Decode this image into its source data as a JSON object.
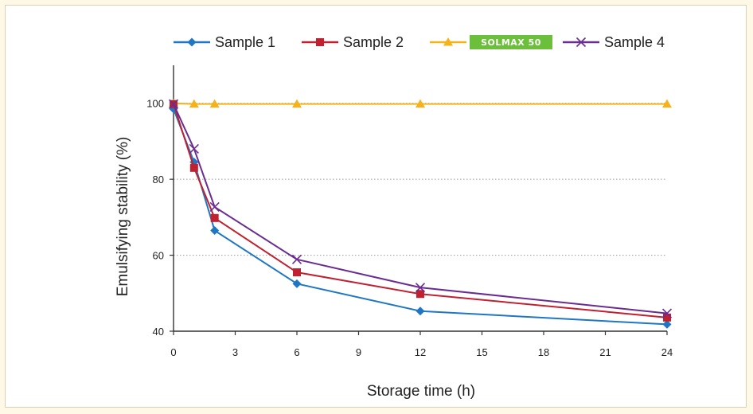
{
  "chart_data": {
    "type": "line",
    "xlabel": "Storage time (h)",
    "ylabel": "Emulsifying stability (%)",
    "xlim": [
      0,
      24
    ],
    "ylim": [
      40,
      110
    ],
    "xticks": [
      0,
      3,
      6,
      9,
      12,
      15,
      18,
      21,
      24
    ],
    "yticks": [
      40,
      60,
      80,
      100
    ],
    "grid": "horizontal dotted",
    "legend_position": "top",
    "series": [
      {
        "name": "Sample 1",
        "color": "#1f77c4",
        "marker": "diamond",
        "x": [
          0,
          1,
          2,
          6,
          12,
          24
        ],
        "y": [
          98.5,
          84.5,
          66.5,
          52.5,
          45.3,
          41.8
        ]
      },
      {
        "name": "Sample 2",
        "color": "#c0202f",
        "marker": "square",
        "x": [
          0,
          1,
          2,
          6,
          12,
          24
        ],
        "y": [
          99.8,
          83.0,
          69.8,
          55.5,
          49.8,
          43.6
        ]
      },
      {
        "name": "SOLMAX 50",
        "color": "#f5b21a",
        "marker": "triangle",
        "legend_badge": true,
        "badge_color": "#6cbf3a",
        "x": [
          0,
          1,
          2,
          6,
          12,
          24
        ],
        "y": [
          100,
          99.8,
          99.8,
          99.8,
          99.8,
          99.8
        ]
      },
      {
        "name": "Sample 4",
        "color": "#6a2c91",
        "marker": "x",
        "x": [
          0,
          1,
          2,
          6,
          12,
          24
        ],
        "y": [
          99.8,
          88.0,
          72.7,
          58.9,
          51.5,
          44.7
        ]
      }
    ]
  }
}
